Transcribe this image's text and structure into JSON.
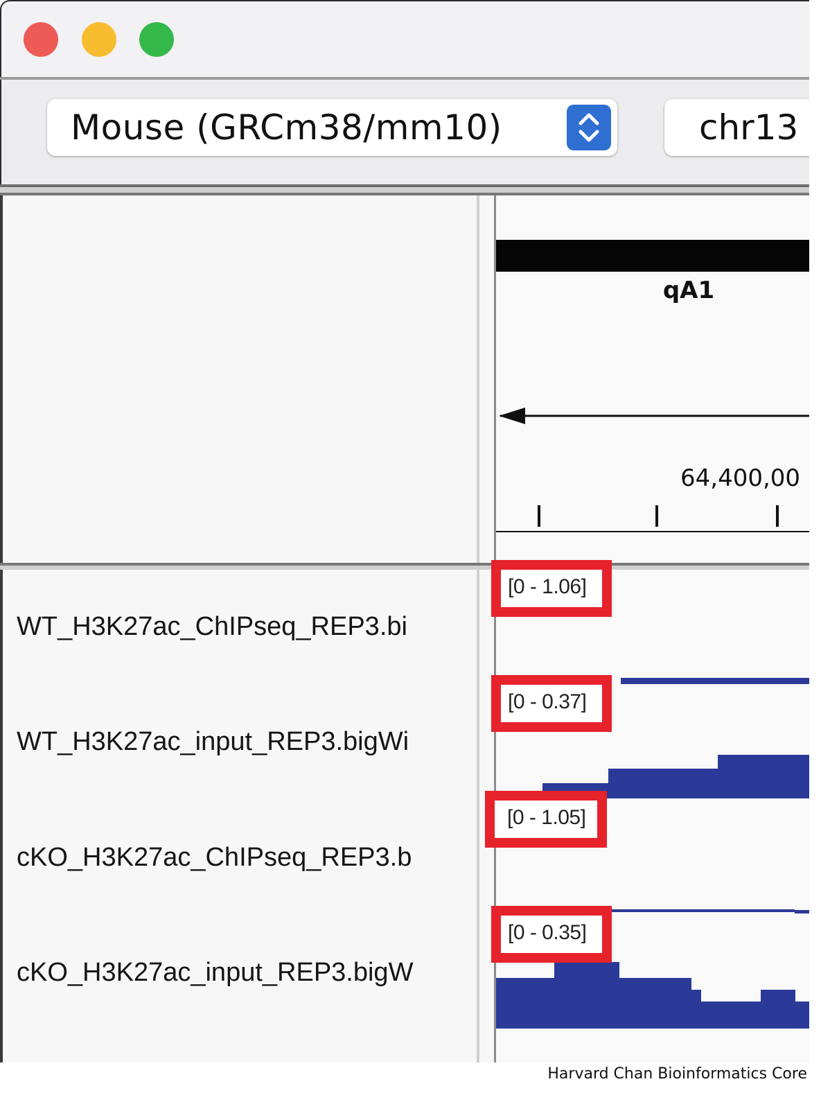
{
  "window": {
    "controls": [
      "close",
      "minimize",
      "maximize"
    ],
    "colors": {
      "close": "#ee5a56",
      "minimize": "#f8bd2e",
      "maximize": "#35b84a"
    }
  },
  "toolbar": {
    "genome_select": {
      "value": "Mouse (GRCm38/mm10)",
      "icon": "stepper-updown-icon"
    },
    "chromosome_select": {
      "value": "chr13"
    }
  },
  "ideogram": {
    "band_label": "qA1"
  },
  "gene": {
    "strand": "minus",
    "direction_icon": "arrow-left-icon"
  },
  "ruler": {
    "position_label": "64,400,00"
  },
  "tracks": [
    {
      "name": "WT_H3K27ac_ChIPseq_REP3.bi",
      "scale": "[0 - 1.06]"
    },
    {
      "name": "WT_H3K27ac_input_REP3.bigWi",
      "scale": "[0 - 0.37]"
    },
    {
      "name": "cKO_H3K27ac_ChIPseq_REP3.b",
      "scale": "[0 - 1.05]"
    },
    {
      "name": "cKO_H3K27ac_input_REP3.bigW",
      "scale": "[0 - 0.35]"
    }
  ],
  "colors": {
    "signal": "#2b3a98",
    "highlight_box": "#e6222b"
  },
  "footer": {
    "credit": "Harvard Chan Bioinformatics Core"
  }
}
